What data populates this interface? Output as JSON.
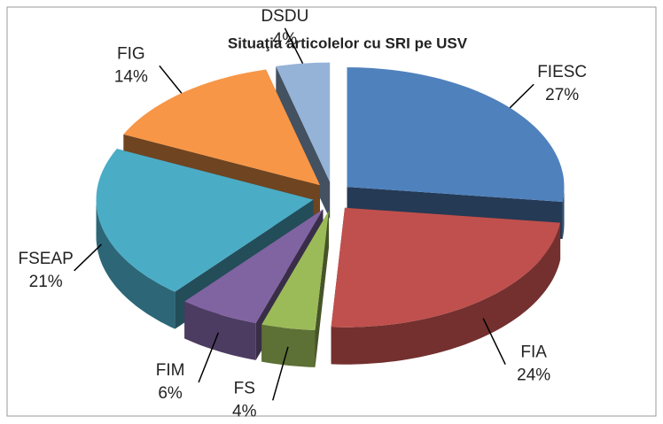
{
  "chart_data": {
    "type": "pie",
    "title": "Situaţia articolelor cu  SRI pe USV",
    "categories": [
      "FIESC",
      "FIA",
      "FS",
      "FIM",
      "FSEAP",
      "FIG",
      "DSDU"
    ],
    "values": [
      27,
      24,
      4,
      6,
      21,
      14,
      4
    ],
    "value_labels": [
      "27%",
      "24%",
      "4%",
      "6%",
      "21%",
      "14%",
      "4%"
    ],
    "colors": [
      "#4f81bd",
      "#c0504d",
      "#9bbb59",
      "#8064a2",
      "#4bacc6",
      "#f79646",
      "#95b3d7"
    ]
  }
}
